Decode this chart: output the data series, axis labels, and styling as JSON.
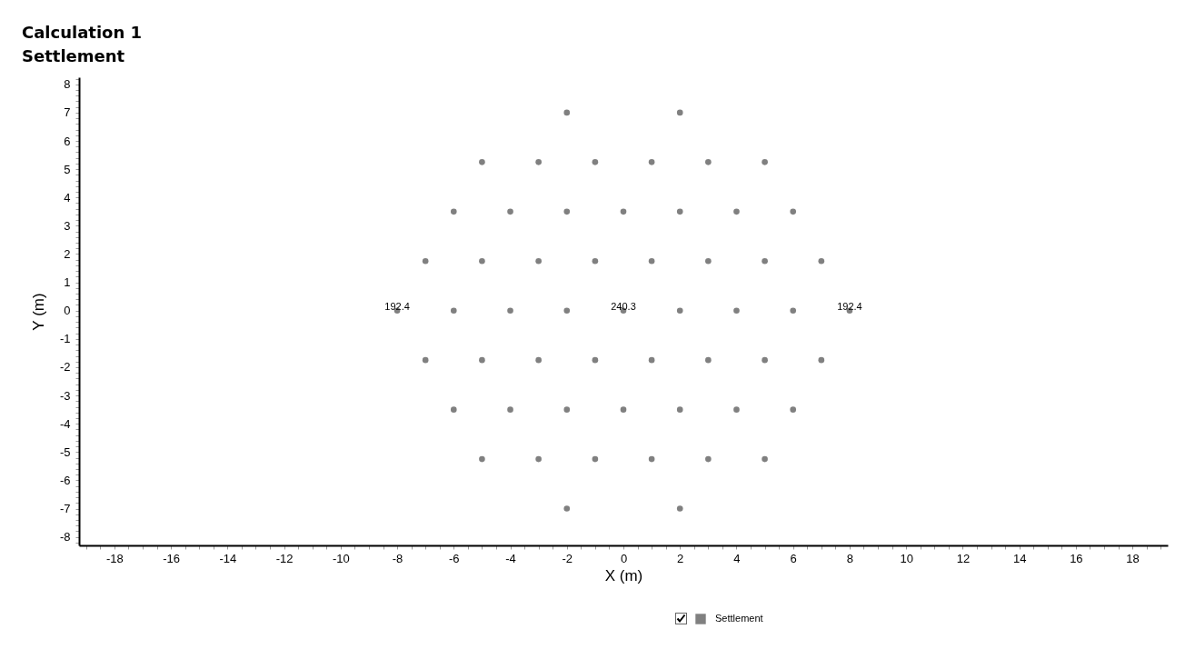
{
  "chart_data": {
    "type": "scatter",
    "title": "Calculation 1",
    "subtitle": "Settlement",
    "xlabel": "X (m)",
    "ylabel": "Y (m)",
    "xlim": [
      -19.25,
      19.25
    ],
    "ylim": [
      -8.3,
      8.25
    ],
    "xticks": [
      {
        "value": -19,
        "label": null
      },
      {
        "value": -18.5,
        "label": null
      },
      -18,
      {
        "value": -17.5,
        "label": null
      },
      {
        "value": -17,
        "label": null
      },
      {
        "value": -16.5,
        "label": null
      },
      -16,
      {
        "value": -15.5,
        "label": null
      },
      {
        "value": -15,
        "label": null
      },
      {
        "value": -14.5,
        "label": null
      },
      -14,
      {
        "value": -13.5,
        "label": null
      },
      {
        "value": -13,
        "label": null
      },
      {
        "value": -12.5,
        "label": null
      },
      -12,
      {
        "value": -11.5,
        "label": null
      },
      {
        "value": -11,
        "label": null
      },
      {
        "value": -10.5,
        "label": null
      },
      -10,
      {
        "value": -9.5,
        "label": null
      },
      {
        "value": -9,
        "label": null
      },
      {
        "value": -8.5,
        "label": null
      },
      -8,
      {
        "value": -7.5,
        "label": null
      },
      {
        "value": -7,
        "label": null
      },
      {
        "value": -6.5,
        "label": null
      },
      -6,
      {
        "value": -5.5,
        "label": null
      },
      {
        "value": -5,
        "label": null
      },
      {
        "value": -4.5,
        "label": null
      },
      -4,
      {
        "value": -3.5,
        "label": null
      },
      {
        "value": -3,
        "label": null
      },
      {
        "value": -2.5,
        "label": null
      },
      -2,
      {
        "value": -1.5,
        "label": null
      },
      {
        "value": -1,
        "label": null
      },
      {
        "value": -0.5,
        "label": null
      },
      0,
      {
        "value": 0.5,
        "label": null
      },
      {
        "value": 1,
        "label": null
      },
      {
        "value": 1.5,
        "label": null
      },
      2,
      {
        "value": 2.5,
        "label": null
      },
      {
        "value": 3,
        "label": null
      },
      {
        "value": 3.5,
        "label": null
      },
      4,
      {
        "value": 4.5,
        "label": null
      },
      {
        "value": 5,
        "label": null
      },
      {
        "value": 5.5,
        "label": null
      },
      6,
      {
        "value": 6.5,
        "label": null
      },
      {
        "value": 7,
        "label": null
      },
      {
        "value": 7.5,
        "label": null
      },
      8,
      {
        "value": 8.5,
        "label": null
      },
      {
        "value": 9,
        "label": null
      },
      {
        "value": 9.5,
        "label": null
      },
      10,
      {
        "value": 10.5,
        "label": null
      },
      {
        "value": 11,
        "label": null
      },
      {
        "value": 11.5,
        "label": null
      },
      12,
      {
        "value": 12.5,
        "label": null
      },
      {
        "value": 13,
        "label": null
      },
      {
        "value": 13.5,
        "label": null
      },
      14,
      {
        "value": 14.5,
        "label": null
      },
      {
        "value": 15,
        "label": null
      },
      {
        "value": 15.5,
        "label": null
      },
      16,
      {
        "value": 16.5,
        "label": null
      },
      {
        "value": 17,
        "label": null
      },
      {
        "value": 17.5,
        "label": null
      },
      18,
      {
        "value": 18.5,
        "label": null
      },
      {
        "value": 19,
        "label": null
      }
    ],
    "yticks": [
      {
        "value": -8.2,
        "label": null
      },
      -8,
      {
        "value": -7.8,
        "label": null
      },
      {
        "value": -7.6,
        "label": null
      },
      {
        "value": -7.4,
        "label": null
      },
      {
        "value": -7.2,
        "label": null
      },
      -7,
      {
        "value": -6.8,
        "label": null
      },
      {
        "value": -6.6,
        "label": null
      },
      {
        "value": -6.4,
        "label": null
      },
      {
        "value": -6.2,
        "label": null
      },
      -6,
      {
        "value": -5.8,
        "label": null
      },
      {
        "value": -5.6,
        "label": null
      },
      {
        "value": -5.4,
        "label": null
      },
      {
        "value": -5.2,
        "label": null
      },
      -5,
      {
        "value": -4.8,
        "label": null
      },
      {
        "value": -4.6,
        "label": null
      },
      {
        "value": -4.4,
        "label": null
      },
      {
        "value": -4.2,
        "label": null
      },
      -4,
      {
        "value": -3.8,
        "label": null
      },
      {
        "value": -3.6,
        "label": null
      },
      {
        "value": -3.4,
        "label": null
      },
      {
        "value": -3.2,
        "label": null
      },
      -3,
      {
        "value": -2.8,
        "label": null
      },
      {
        "value": -2.6,
        "label": null
      },
      {
        "value": -2.4,
        "label": null
      },
      {
        "value": -2.2,
        "label": null
      },
      -2,
      {
        "value": -1.8,
        "label": null
      },
      {
        "value": -1.6,
        "label": null
      },
      {
        "value": -1.4,
        "label": null
      },
      {
        "value": -1.2,
        "label": null
      },
      -1,
      {
        "value": -0.8,
        "label": null
      },
      {
        "value": -0.6,
        "label": null
      },
      {
        "value": -0.4,
        "label": null
      },
      {
        "value": -0.2,
        "label": null
      },
      0,
      {
        "value": 0.2,
        "label": null
      },
      {
        "value": 0.4,
        "label": null
      },
      {
        "value": 0.6,
        "label": null
      },
      {
        "value": 0.8,
        "label": null
      },
      1,
      {
        "value": 1.2,
        "label": null
      },
      {
        "value": 1.4,
        "label": null
      },
      {
        "value": 1.6,
        "label": null
      },
      {
        "value": 1.8,
        "label": null
      },
      2,
      {
        "value": 2.2,
        "label": null
      },
      {
        "value": 2.4,
        "label": null
      },
      {
        "value": 2.6,
        "label": null
      },
      {
        "value": 2.8,
        "label": null
      },
      3,
      {
        "value": 3.2,
        "label": null
      },
      {
        "value": 3.4,
        "label": null
      },
      {
        "value": 3.6,
        "label": null
      },
      {
        "value": 3.8,
        "label": null
      },
      4,
      {
        "value": 4.2,
        "label": null
      },
      {
        "value": 4.4,
        "label": null
      },
      {
        "value": 4.6,
        "label": null
      },
      {
        "value": 4.8,
        "label": null
      },
      5,
      {
        "value": 5.2,
        "label": null
      },
      {
        "value": 5.4,
        "label": null
      },
      {
        "value": 5.6,
        "label": null
      },
      {
        "value": 5.8,
        "label": null
      },
      6,
      {
        "value": 6.2,
        "label": null
      },
      {
        "value": 6.4,
        "label": null
      },
      {
        "value": 6.6,
        "label": null
      },
      {
        "value": 6.8,
        "label": null
      },
      7,
      {
        "value": 7.2,
        "label": null
      },
      {
        "value": 7.4,
        "label": null
      },
      {
        "value": 7.6,
        "label": null
      },
      {
        "value": 7.8,
        "label": null
      },
      8,
      {
        "value": 8.2,
        "label": null
      }
    ],
    "series": [
      {
        "name": "Settlement",
        "color": "#808080",
        "x": [
          -2,
          2,
          -5,
          -3,
          -1,
          1,
          3,
          5,
          -6,
          -4,
          -2,
          0,
          2,
          4,
          6,
          -7,
          -5,
          -3,
          -1,
          1,
          3,
          5,
          7,
          -8,
          -6,
          -4,
          -2,
          0,
          2,
          4,
          6,
          8,
          -7,
          -5,
          -3,
          -1,
          1,
          3,
          5,
          7,
          -6,
          -4,
          -2,
          0,
          2,
          4,
          6,
          -5,
          -3,
          -1,
          1,
          3,
          5,
          -2,
          2
        ],
        "values": [
          7,
          7,
          5.25,
          5.25,
          5.25,
          5.25,
          5.25,
          5.25,
          3.5,
          3.5,
          3.5,
          3.5,
          3.5,
          3.5,
          3.5,
          1.75,
          1.75,
          1.75,
          1.75,
          1.75,
          1.75,
          1.75,
          1.75,
          0,
          0,
          0,
          0,
          0,
          0,
          0,
          0,
          0,
          -1.75,
          -1.75,
          -1.75,
          -1.75,
          -1.75,
          -1.75,
          -1.75,
          -1.75,
          -3.5,
          -3.5,
          -3.5,
          -3.5,
          -3.5,
          -3.5,
          -3.5,
          -5.25,
          -5.25,
          -5.25,
          -5.25,
          -5.25,
          -5.25,
          -7,
          -7
        ]
      }
    ],
    "annotations": [
      {
        "text": "192.4",
        "x": -8,
        "y": 0
      },
      {
        "text": "240.3",
        "x": 0,
        "y": 0
      },
      {
        "text": "192.4",
        "x": 8,
        "y": 0
      }
    ],
    "marker": "circle",
    "legend": "bottom"
  }
}
